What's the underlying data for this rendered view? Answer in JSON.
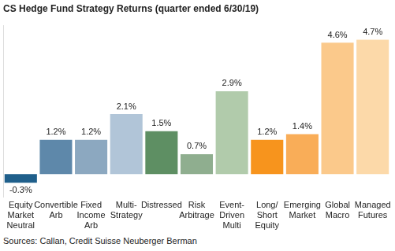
{
  "chart_data": {
    "type": "bar",
    "title": "CS Hedge Fund Strategy Returns (quarter ended 6/30/19)",
    "annotations": [
      "Sources: Callan, Credit Suisse Neuberger Berman"
    ],
    "categories": [
      "Equity Market Neutral",
      "Convertible Arb",
      "Fixed Income Arb",
      "Multi-Strategy",
      "Distressed",
      "Risk Arbitrage",
      "Event-Driven Multi",
      "Long/Short Equity",
      "Emerging Market",
      "Global Macro",
      "Managed Futures"
    ],
    "values": [
      -0.3,
      1.2,
      1.2,
      2.1,
      1.5,
      0.7,
      2.9,
      1.2,
      1.4,
      4.6,
      4.7
    ],
    "value_labels": [
      "-0.3%",
      "1.2%",
      "1.2%",
      "2.1%",
      "1.5%",
      "0.7%",
      "2.9%",
      "1.2%",
      "1.4%",
      "4.6%",
      "4.7%"
    ],
    "colors": [
      "#1f5f8b",
      "#5e88aa",
      "#8ca8c0",
      "#b1c5d8",
      "#5e8f63",
      "#8fae8f",
      "#b1cbab",
      "#f7941d",
      "#f9ad58",
      "#fbc98b",
      "#fcd9a9"
    ],
    "data_labels": true,
    "ylim": [
      -0.8,
      5.2
    ],
    "grid": false,
    "tick_labels": "x"
  }
}
